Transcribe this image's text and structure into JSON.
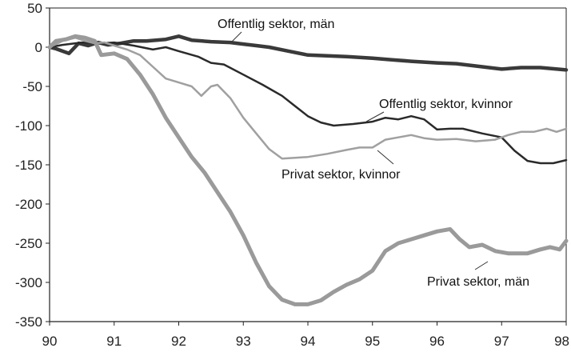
{
  "chart_data": {
    "type": "line",
    "title": "",
    "xlabel": "",
    "ylabel": "",
    "xlim": [
      90,
      98
    ],
    "ylim": [
      -350,
      50
    ],
    "x_ticks": [
      "90",
      "91",
      "92",
      "93",
      "94",
      "95",
      "96",
      "97",
      "98"
    ],
    "y_ticks": [
      "50",
      "0",
      "-50",
      "-100",
      "-150",
      "-200",
      "-250",
      "-300",
      "-350"
    ],
    "grid": false,
    "series": [
      {
        "name": "Offentlig sektor, män",
        "color": "#3a3a3a",
        "width": 4.5,
        "points": [
          [
            90,
            0
          ],
          [
            90.1,
            -2
          ],
          [
            90.3,
            -8
          ],
          [
            90.45,
            5
          ],
          [
            90.6,
            2
          ],
          [
            90.75,
            6
          ],
          [
            90.9,
            3
          ],
          [
            91.1,
            5
          ],
          [
            91.3,
            8
          ],
          [
            91.5,
            8
          ],
          [
            91.8,
            10
          ],
          [
            92.0,
            14
          ],
          [
            92.2,
            9
          ],
          [
            92.5,
            7
          ],
          [
            92.8,
            6
          ],
          [
            93.0,
            4
          ],
          [
            93.2,
            2
          ],
          [
            93.4,
            0
          ],
          [
            93.7,
            -5
          ],
          [
            94.0,
            -10
          ],
          [
            94.3,
            -11
          ],
          [
            94.6,
            -12
          ],
          [
            95.0,
            -14
          ],
          [
            95.3,
            -16
          ],
          [
            95.6,
            -18
          ],
          [
            96.0,
            -20
          ],
          [
            96.3,
            -21
          ],
          [
            96.6,
            -24
          ],
          [
            97.0,
            -28
          ],
          [
            97.3,
            -26
          ],
          [
            97.6,
            -26
          ],
          [
            98.0,
            -29
          ]
        ]
      },
      {
        "name": "Offentlig sektor, kvinnor",
        "color": "#2a2a2a",
        "width": 2.5,
        "points": [
          [
            90,
            0
          ],
          [
            90.2,
            3
          ],
          [
            90.5,
            6
          ],
          [
            90.8,
            5
          ],
          [
            91.0,
            6
          ],
          [
            91.3,
            2
          ],
          [
            91.6,
            -3
          ],
          [
            91.8,
            0
          ],
          [
            92.0,
            -5
          ],
          [
            92.3,
            -12
          ],
          [
            92.5,
            -20
          ],
          [
            92.7,
            -22
          ],
          [
            93.0,
            -35
          ],
          [
            93.3,
            -48
          ],
          [
            93.6,
            -62
          ],
          [
            93.8,
            -75
          ],
          [
            94.0,
            -88
          ],
          [
            94.2,
            -96
          ],
          [
            94.4,
            -100
          ],
          [
            94.7,
            -98
          ],
          [
            95.0,
            -95
          ],
          [
            95.2,
            -90
          ],
          [
            95.4,
            -92
          ],
          [
            95.6,
            -88
          ],
          [
            95.8,
            -92
          ],
          [
            96.0,
            -105
          ],
          [
            96.2,
            -104
          ],
          [
            96.4,
            -104
          ],
          [
            96.7,
            -110
          ],
          [
            97.0,
            -115
          ],
          [
            97.2,
            -132
          ],
          [
            97.4,
            -145
          ],
          [
            97.6,
            -148
          ],
          [
            97.8,
            -148
          ],
          [
            98.0,
            -144
          ]
        ]
      },
      {
        "name": "Privat sektor, kvinnor",
        "color": "#a0a0a0",
        "width": 2.5,
        "points": [
          [
            90,
            0
          ],
          [
            90.2,
            8
          ],
          [
            90.4,
            12
          ],
          [
            90.55,
            8
          ],
          [
            90.7,
            5
          ],
          [
            90.85,
            6
          ],
          [
            91.0,
            2
          ],
          [
            91.2,
            -3
          ],
          [
            91.4,
            -10
          ],
          [
            91.6,
            -25
          ],
          [
            91.8,
            -40
          ],
          [
            92.0,
            -45
          ],
          [
            92.2,
            -50
          ],
          [
            92.35,
            -62
          ],
          [
            92.5,
            -50
          ],
          [
            92.6,
            -48
          ],
          [
            92.8,
            -65
          ],
          [
            93.0,
            -90
          ],
          [
            93.2,
            -110
          ],
          [
            93.4,
            -130
          ],
          [
            93.6,
            -142
          ],
          [
            93.8,
            -141
          ],
          [
            94.0,
            -140
          ],
          [
            94.3,
            -136
          ],
          [
            94.6,
            -131
          ],
          [
            94.8,
            -128
          ],
          [
            95.0,
            -128
          ],
          [
            95.2,
            -118
          ],
          [
            95.4,
            -115
          ],
          [
            95.6,
            -112
          ],
          [
            95.8,
            -116
          ],
          [
            96.0,
            -118
          ],
          [
            96.3,
            -117
          ],
          [
            96.6,
            -120
          ],
          [
            96.9,
            -118
          ],
          [
            97.1,
            -112
          ],
          [
            97.3,
            -108
          ],
          [
            97.5,
            -108
          ],
          [
            97.7,
            -104
          ],
          [
            97.85,
            -108
          ],
          [
            98.0,
            -104
          ]
        ]
      },
      {
        "name": "Privat sektor, män",
        "color": "#9a9a9a",
        "width": 5,
        "points": [
          [
            90,
            0
          ],
          [
            90.1,
            8
          ],
          [
            90.25,
            10
          ],
          [
            90.4,
            14
          ],
          [
            90.55,
            12
          ],
          [
            90.7,
            8
          ],
          [
            90.8,
            -10
          ],
          [
            91.0,
            -8
          ],
          [
            91.2,
            -15
          ],
          [
            91.4,
            -35
          ],
          [
            91.6,
            -60
          ],
          [
            91.8,
            -90
          ],
          [
            92.0,
            -115
          ],
          [
            92.2,
            -140
          ],
          [
            92.4,
            -160
          ],
          [
            92.6,
            -185
          ],
          [
            92.8,
            -210
          ],
          [
            93.0,
            -240
          ],
          [
            93.2,
            -275
          ],
          [
            93.4,
            -305
          ],
          [
            93.6,
            -322
          ],
          [
            93.8,
            -328
          ],
          [
            94.0,
            -328
          ],
          [
            94.2,
            -323
          ],
          [
            94.4,
            -312
          ],
          [
            94.6,
            -303
          ],
          [
            94.8,
            -296
          ],
          [
            95.0,
            -285
          ],
          [
            95.2,
            -260
          ],
          [
            95.4,
            -250
          ],
          [
            95.6,
            -245
          ],
          [
            95.8,
            -240
          ],
          [
            96.0,
            -235
          ],
          [
            96.2,
            -232
          ],
          [
            96.35,
            -245
          ],
          [
            96.5,
            -255
          ],
          [
            96.7,
            -252
          ],
          [
            96.9,
            -260
          ],
          [
            97.1,
            -263
          ],
          [
            97.4,
            -263
          ],
          [
            97.6,
            -258
          ],
          [
            97.75,
            -255
          ],
          [
            97.9,
            -258
          ],
          [
            98.0,
            -247
          ]
        ]
      }
    ],
    "annotations": [
      {
        "text": "Offentlig sektor, män",
        "series": 0
      },
      {
        "text": "Offentlig sektor, kvinnor",
        "series": 1
      },
      {
        "text": "Privat sektor, kvinnor",
        "series": 2
      },
      {
        "text": "Privat sektor, män",
        "series": 3
      }
    ]
  }
}
